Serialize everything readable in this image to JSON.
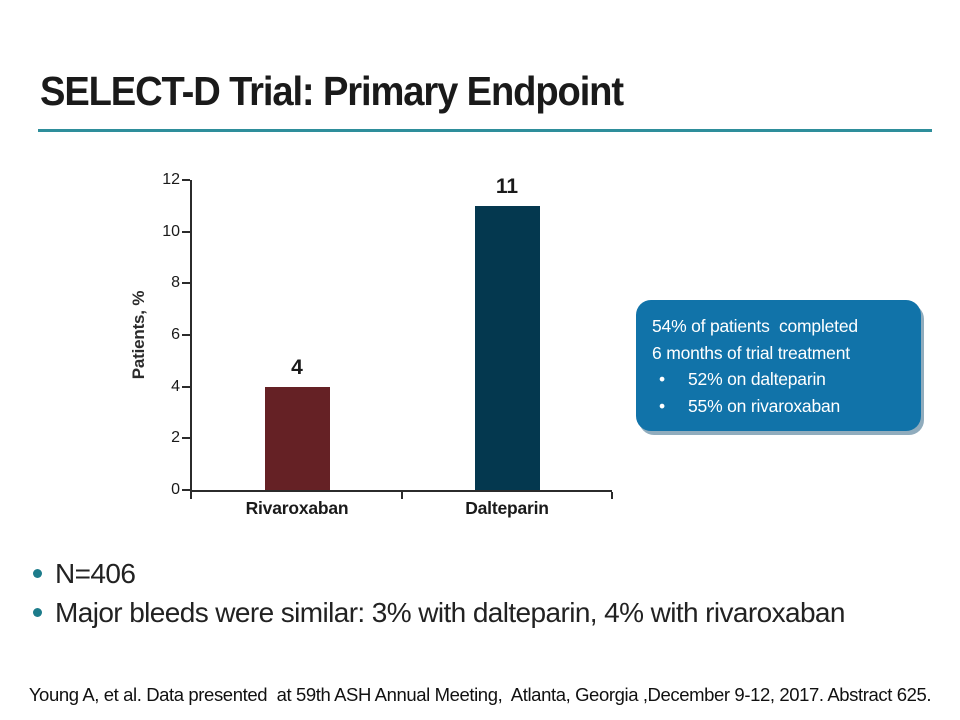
{
  "slide": {
    "title": "SELECT-D Trial: Primary Endpoint",
    "footer": "Young A, et al. Data presented  at 59th ASH Annual Meeting,  Atlanta, Georgia ,December 9-12, 2017. Abstract 625.",
    "key_points": [
      "N=406",
      "Major bleeds were similar: 3% with dalteparin, 4% with rivaroxaban"
    ]
  },
  "chart_data": {
    "type": "bar",
    "categories": [
      "Rivaroxaban",
      "Dalteparin"
    ],
    "values": [
      4,
      11
    ],
    "data_labels": [
      "4",
      "11"
    ],
    "bar_colors": [
      "#652125",
      "#04384f"
    ],
    "title": "",
    "xlabel": "",
    "ylabel": "Patients, %",
    "yticks": [
      0,
      2,
      4,
      6,
      8,
      10,
      12
    ],
    "ylim": [
      0,
      12
    ],
    "grid": false,
    "legend": "none"
  },
  "callout": {
    "lines": [
      "54% of patients  completed",
      "6 months of trial treatment"
    ],
    "bullets": [
      "52% on dalteparin",
      "55% on rivaroxaban"
    ],
    "bg_color": "#1173a9",
    "text_color": "#ffffff"
  },
  "icons": {
    "bullet": "•"
  },
  "colors": {
    "accent_rule": "#2e8e9b",
    "bullet_dot": "#1d7c8b",
    "bar_rivaroxaban": "#652125",
    "bar_dalteparin": "#04384f",
    "callout_bg": "#1173a9",
    "title_text": "#1a1a1a",
    "body_text": "#222222"
  }
}
